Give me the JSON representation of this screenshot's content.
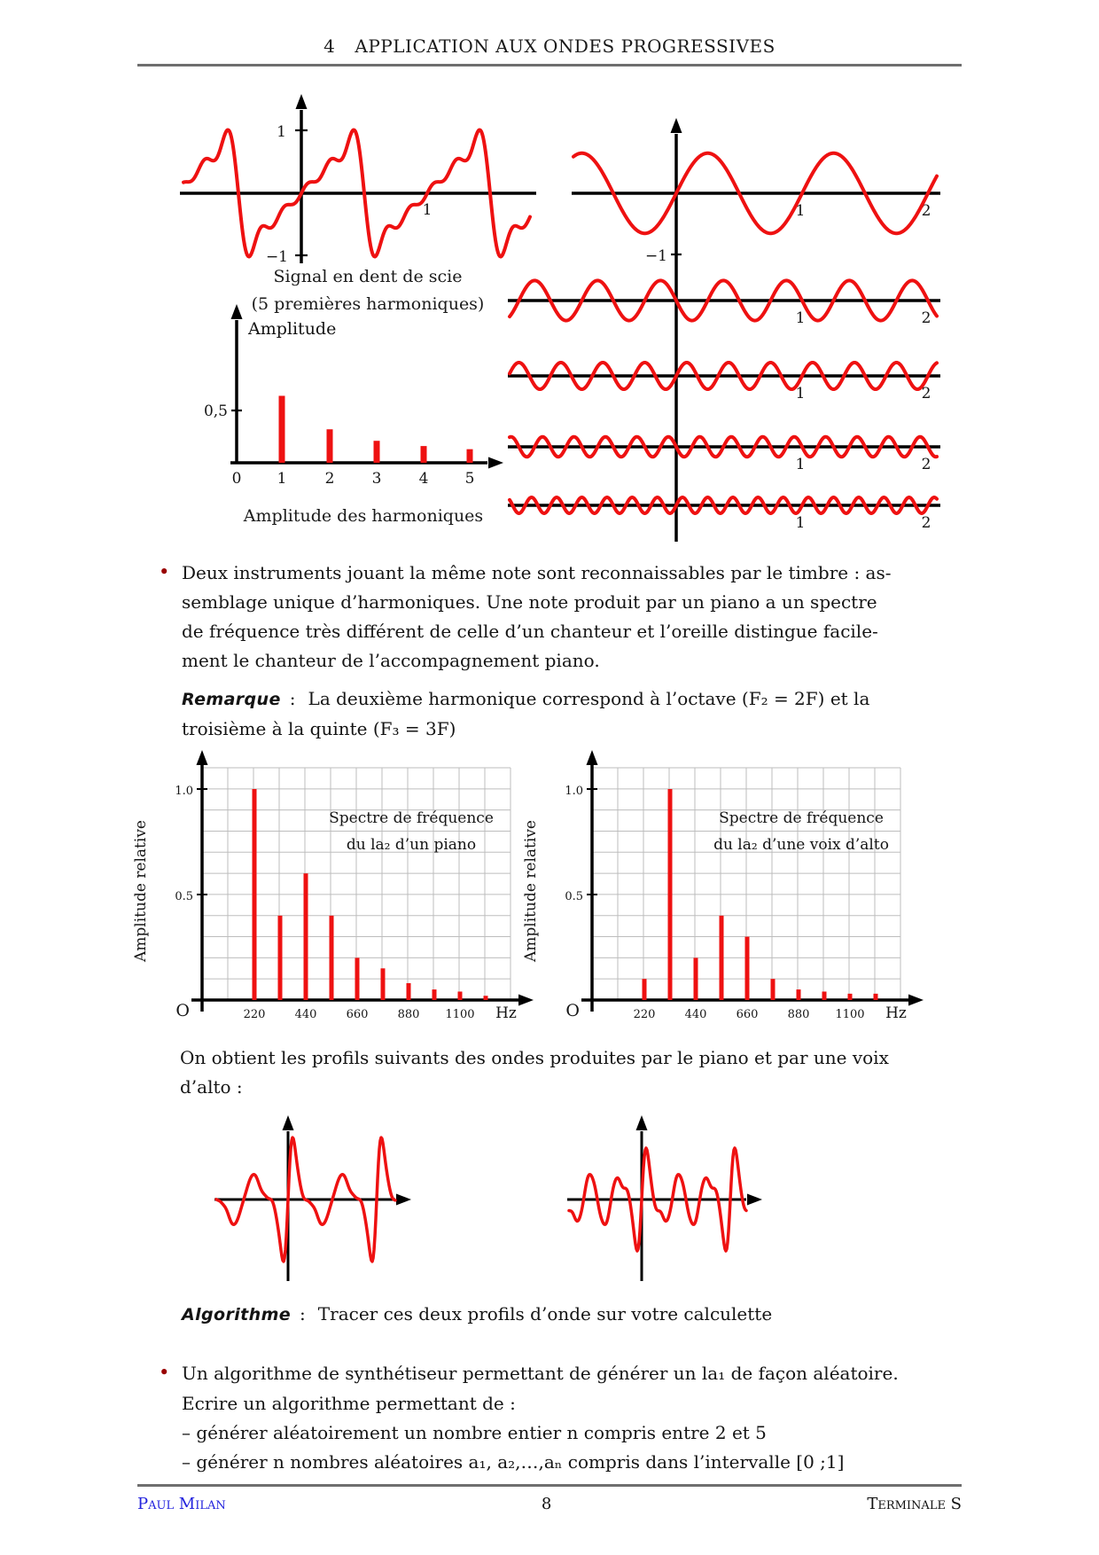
{
  "colors": {
    "red": "#ee1111",
    "grid": "#bdbdbd",
    "axis": "#000000",
    "bullet": "#990000",
    "footer_blue": "#2222dd",
    "rule": "#6e6e6e"
  },
  "header": {
    "section_number": "4",
    "title": "APPLICATION AUX ONDES PROGRESSIVES"
  },
  "bullet1": {
    "marker": "•",
    "lines": [
      "Deux instruments jouant la même note sont reconnaissables par le timbre : as-",
      "semblage unique d’harmoniques. Une note produit par un piano a un spectre",
      "de fréquence très différent de celle d’un chanteur et l’oreille distingue facile-",
      "ment le chanteur de l’accompagnement piano."
    ]
  },
  "remarque": {
    "label": "Remarque",
    "separator": ":",
    "line1": "La deuxième harmonique correspond à l’octave (F₂ = 2F) et la",
    "line2": "troisième à la quinte (F₃ = 3F)"
  },
  "paragraph2": {
    "lines": [
      "On obtient les profils suivants des ondes produites par le piano et par une voix",
      "d’alto :"
    ]
  },
  "algorithme": {
    "label": "Algorithme",
    "separator": ":",
    "text": "Tracer ces deux profils d’onde sur votre calculette"
  },
  "bullet2": {
    "marker": "•",
    "text": "Un algorithme de synthétiseur permettant de générer un la₁ de façon aléatoire."
  },
  "ecrire": {
    "intro": "Ecrire un algorithme permettant de :",
    "items": [
      "– générer aléatoirement un nombre entier n compris entre 2 et 5",
      "– générer n nombres aléatoires a₁, a₂,…,aₙ compris dans l’intervalle [0 ;1]"
    ]
  },
  "footer": {
    "author": "Paul Milan",
    "page": "8",
    "level": "Terminale S"
  },
  "chart_data": [
    {
      "id": "sawtooth",
      "type": "line",
      "caption_line1": "Signal en dent de scie",
      "caption_line2": "(5 premières harmoniques)",
      "y_ticks": [
        "1",
        "−1"
      ],
      "x_tick": "1",
      "x_range": [
        -0.94,
        1.82
      ],
      "ylim": [
        -1.2,
        1.2
      ],
      "harmonics": [
        {
          "n": 1,
          "a": 0.637
        },
        {
          "n": 2,
          "a": -0.318
        },
        {
          "n": 3,
          "a": 0.212
        },
        {
          "n": 4,
          "a": -0.159
        },
        {
          "n": 5,
          "a": 0.127
        }
      ]
    },
    {
      "id": "harmonic-rows",
      "type": "line",
      "x_tick_labels": [
        "1",
        "2"
      ],
      "first_row_y_tick": "−1",
      "x_range": [
        -1.31,
        2.07
      ],
      "rows": [
        {
          "n": 1,
          "a": 0.637
        },
        {
          "n": 2,
          "a": -0.318
        },
        {
          "n": 3,
          "a": 0.212
        },
        {
          "n": 4,
          "a": -0.159
        },
        {
          "n": 5,
          "a": 0.127
        }
      ]
    },
    {
      "id": "amplitude-harmonics",
      "type": "bar",
      "axis_label": "Amplitude",
      "caption": "Amplitude des harmoniques",
      "categories": [
        "1",
        "2",
        "3",
        "4",
        "5"
      ],
      "values": [
        0.64,
        0.32,
        0.21,
        0.16,
        0.13
      ],
      "x_tick_labels": [
        "0",
        "1",
        "2",
        "3",
        "4",
        "5"
      ],
      "y_tick_labels": [
        "0,5"
      ],
      "origin_label": "0",
      "ylim": [
        0,
        1
      ]
    },
    {
      "id": "spectrum-piano",
      "type": "bar",
      "title_lines": [
        "Spectre de fréquence",
        "du la₂ d’un piano"
      ],
      "ylabel": "Amplitude relative",
      "origin_label": "O",
      "x_unit": "Hz",
      "frequencies_hz": [
        220,
        330,
        440,
        550,
        660,
        770,
        880,
        990,
        1100,
        1210
      ],
      "values": [
        1.0,
        0.4,
        0.6,
        0.4,
        0.2,
        0.15,
        0.08,
        0.05,
        0.04,
        0.02
      ],
      "x_tick_labels": [
        "220",
        "440",
        "660",
        "880",
        "1100"
      ],
      "y_tick_labels": [
        "0.5",
        "1.0"
      ],
      "ylim": [
        0,
        1.1
      ],
      "grid": true
    },
    {
      "id": "spectrum-alto",
      "type": "bar",
      "title_lines": [
        "Spectre de fréquence",
        "du la₂ d’une voix d’alto"
      ],
      "ylabel": "Amplitude relative",
      "origin_label": "O",
      "x_unit": "Hz",
      "frequencies_hz": [
        220,
        330,
        440,
        550,
        660,
        770,
        880,
        990,
        1100,
        1210
      ],
      "values": [
        0.1,
        1.0,
        0.2,
        0.4,
        0.3,
        0.1,
        0.05,
        0.04,
        0.03,
        0.03
      ],
      "x_tick_labels": [
        "220",
        "440",
        "660",
        "880",
        "1100"
      ],
      "y_tick_labels": [
        "0.5",
        "1.0"
      ],
      "ylim": [
        0,
        1.1
      ],
      "grid": true
    },
    {
      "id": "profile-piano",
      "type": "line",
      "source": "spectrum-piano"
    },
    {
      "id": "profile-alto",
      "type": "line",
      "source": "spectrum-alto"
    }
  ]
}
